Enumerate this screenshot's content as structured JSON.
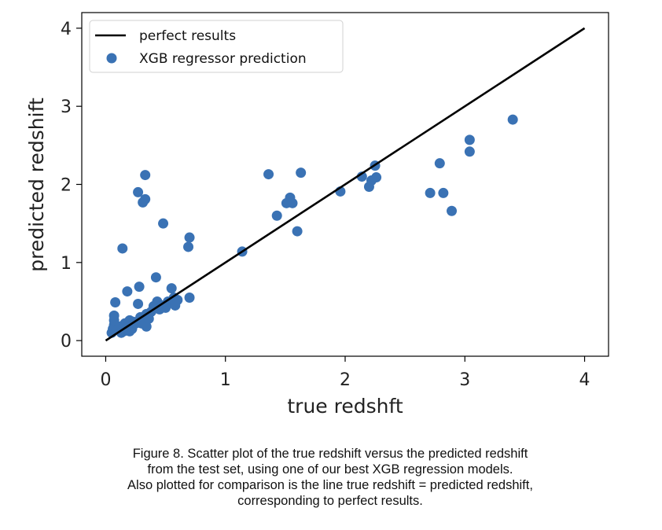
{
  "chart_data": {
    "type": "scatter",
    "xlabel": "true redshft",
    "ylabel": "predicted redshift",
    "xlim": [
      -0.2,
      4.2
    ],
    "ylim": [
      -0.2,
      4.2
    ],
    "xticks": [
      0,
      1,
      2,
      3,
      4
    ],
    "yticks": [
      0,
      1,
      2,
      3,
      4
    ],
    "grid": false,
    "legend_position": "top-left",
    "line": {
      "name": "perfect results",
      "color": "#000000",
      "x": [
        0,
        4
      ],
      "y": [
        0,
        4
      ]
    },
    "scatter": {
      "name": "XGB regressor prediction",
      "color": "#3a72b4",
      "points": [
        [
          0.05,
          0.1
        ],
        [
          0.06,
          0.15
        ],
        [
          0.07,
          0.2
        ],
        [
          0.07,
          0.26
        ],
        [
          0.07,
          0.32
        ],
        [
          0.08,
          0.49
        ],
        [
          0.1,
          0.14
        ],
        [
          0.12,
          0.18
        ],
        [
          0.13,
          0.1
        ],
        [
          0.14,
          1.18
        ],
        [
          0.15,
          0.12
        ],
        [
          0.16,
          0.22
        ],
        [
          0.17,
          0.14
        ],
        [
          0.18,
          0.63
        ],
        [
          0.19,
          0.2
        ],
        [
          0.2,
          0.26
        ],
        [
          0.2,
          0.12
        ],
        [
          0.22,
          0.15
        ],
        [
          0.23,
          0.24
        ],
        [
          0.25,
          0.22
        ],
        [
          0.27,
          1.9
        ],
        [
          0.27,
          0.47
        ],
        [
          0.28,
          0.69
        ],
        [
          0.29,
          0.3
        ],
        [
          0.3,
          0.22
        ],
        [
          0.31,
          1.77
        ],
        [
          0.33,
          2.12
        ],
        [
          0.33,
          1.81
        ],
        [
          0.34,
          0.18
        ],
        [
          0.34,
          0.34
        ],
        [
          0.36,
          0.28
        ],
        [
          0.38,
          0.37
        ],
        [
          0.4,
          0.44
        ],
        [
          0.42,
          0.81
        ],
        [
          0.43,
          0.5
        ],
        [
          0.45,
          0.4
        ],
        [
          0.47,
          0.45
        ],
        [
          0.48,
          1.5
        ],
        [
          0.5,
          0.42
        ],
        [
          0.52,
          0.5
        ],
        [
          0.55,
          0.67
        ],
        [
          0.57,
          0.55
        ],
        [
          0.58,
          0.45
        ],
        [
          0.6,
          0.52
        ],
        [
          0.69,
          1.2
        ],
        [
          0.7,
          0.55
        ],
        [
          0.7,
          1.32
        ],
        [
          1.14,
          1.14
        ],
        [
          1.36,
          2.13
        ],
        [
          1.43,
          1.6
        ],
        [
          1.51,
          1.76
        ],
        [
          1.54,
          1.83
        ],
        [
          1.56,
          1.76
        ],
        [
          1.6,
          1.4
        ],
        [
          1.63,
          2.15
        ],
        [
          1.96,
          1.91
        ],
        [
          2.14,
          2.1
        ],
        [
          2.2,
          1.97
        ],
        [
          2.22,
          2.05
        ],
        [
          2.25,
          2.24
        ],
        [
          2.26,
          2.09
        ],
        [
          2.71,
          1.89
        ],
        [
          2.79,
          2.27
        ],
        [
          2.82,
          1.89
        ],
        [
          2.89,
          1.66
        ],
        [
          3.04,
          2.57
        ],
        [
          3.04,
          2.42
        ],
        [
          3.4,
          2.83
        ]
      ]
    }
  },
  "caption": [
    "Figure 8. Scatter plot of the true redshift versus the predicted redshift",
    "from the test set, using one of our best XGB regression models.",
    "Also plotted for comparison is the line true redshift = predicted redshift,",
    "corresponding to perfect results."
  ]
}
